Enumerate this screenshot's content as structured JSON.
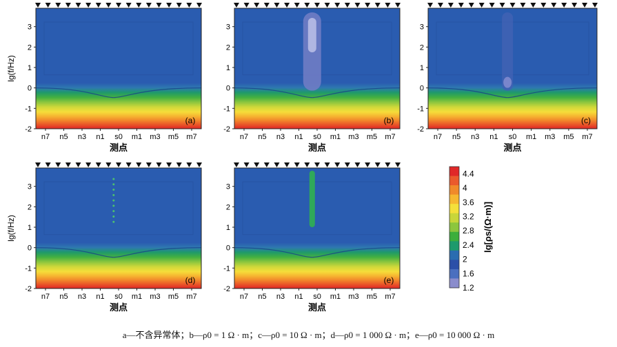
{
  "chart_data": {
    "type": "heatmap",
    "shared": {
      "xlabel": "测点",
      "ylabel": "lg(f/Hz)",
      "x_ticks": [
        "n7",
        "n5",
        "n3",
        "n1",
        "s0",
        "m1",
        "m3",
        "m5",
        "m7"
      ],
      "y_ticks": [
        "3",
        "2",
        "1",
        "0",
        "-1",
        "-2"
      ],
      "ylim": [
        -2,
        3.9
      ]
    },
    "panels": [
      {
        "label": "(a)",
        "resistivity_ohm_m": null,
        "anomaly": "none",
        "show_ylabel": true,
        "show_yticks": true
      },
      {
        "label": "(b)",
        "resistivity_ohm_m": 1,
        "anomaly": "low",
        "show_ylabel": false,
        "show_yticks": true
      },
      {
        "label": "(c)",
        "resistivity_ohm_m": 10,
        "anomaly": "low-weak",
        "show_ylabel": false,
        "show_yticks": true
      },
      {
        "label": "(d)",
        "resistivity_ohm_m": 1000,
        "anomaly": "high-weak",
        "show_ylabel": true,
        "show_yticks": true
      },
      {
        "label": "(e)",
        "resistivity_ohm_m": 10000,
        "anomaly": "high",
        "show_ylabel": false,
        "show_yticks": true
      }
    ],
    "colorbar": {
      "label": "lg[ρs/(Ω·m)]",
      "ticks": [
        "4.4",
        "4",
        "3.6",
        "3.2",
        "2.8",
        "2.4",
        "2",
        "1.6",
        "1.2"
      ],
      "range": [
        1.2,
        4.6
      ],
      "colors": [
        "#8a8ccc",
        "#4a6fbf",
        "#2c4fa8",
        "#2a6cb0",
        "#1e9a6c",
        "#3cae3c",
        "#8cc63e",
        "#c8d63a",
        "#f4e03a",
        "#f6b830",
        "#f08a2a",
        "#ea5a2c",
        "#e02828"
      ]
    }
  },
  "caption": "a—不含异常体；b—ρ0 = 1 Ω · m；c—ρ0 = 10 Ω · m；d—ρ0 = 1 000 Ω · m；e—ρ0 = 10 000 Ω · m"
}
